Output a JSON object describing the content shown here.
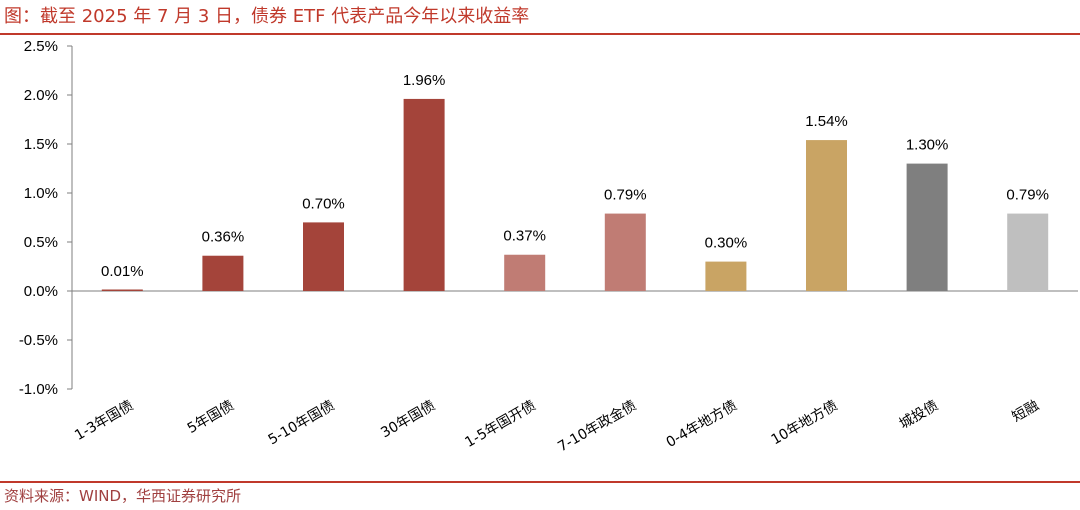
{
  "header": {
    "title": "图：截至 2025 年 7 月 3 日，债券 ETF 代表产品今年以来收益率"
  },
  "footer": {
    "source": "资料来源：WIND，华西证券研究所"
  },
  "colors": {
    "rule": "#c0392b",
    "dark_red": "#a4443a",
    "pink": "#c07c74",
    "gold": "#c9a464",
    "dark_gray": "#7f7f7f",
    "light_gray": "#bfbfbf"
  },
  "chart_data": {
    "type": "bar",
    "title": "截至 2025 年 7 月 3 日，债券 ETF 代表产品今年以来收益率",
    "xlabel": "",
    "ylabel": "",
    "ylim": [
      -1.0,
      2.5
    ],
    "y_ticks": [
      2.5,
      2.0,
      1.5,
      1.0,
      0.5,
      0.0,
      -0.5,
      -1.0
    ],
    "y_tick_labels": [
      "2.5%",
      "2.0%",
      "1.5%",
      "1.0%",
      "0.5%",
      "0.0%",
      "-0.5%",
      "-1.0%"
    ],
    "grid": false,
    "legend": "none",
    "categories": [
      "1-3年国债",
      "5年国债",
      "5-10年国债",
      "30年国债",
      "1-5年国开债",
      "7-10年政金债",
      "0-4年地方债",
      "10年地方债",
      "城投债",
      "短融"
    ],
    "values": [
      0.01,
      0.36,
      0.7,
      1.96,
      0.37,
      0.79,
      0.3,
      1.54,
      1.3,
      0.79
    ],
    "data_labels": [
      "0.01%",
      "0.36%",
      "0.70%",
      "1.96%",
      "0.37%",
      "0.79%",
      "0.30%",
      "1.54%",
      "1.30%",
      "0.79%"
    ],
    "bar_colors": [
      "#a4443a",
      "#a4443a",
      "#a4443a",
      "#a4443a",
      "#c07c74",
      "#c07c74",
      "#c9a464",
      "#c9a464",
      "#7f7f7f",
      "#bfbfbf"
    ]
  }
}
